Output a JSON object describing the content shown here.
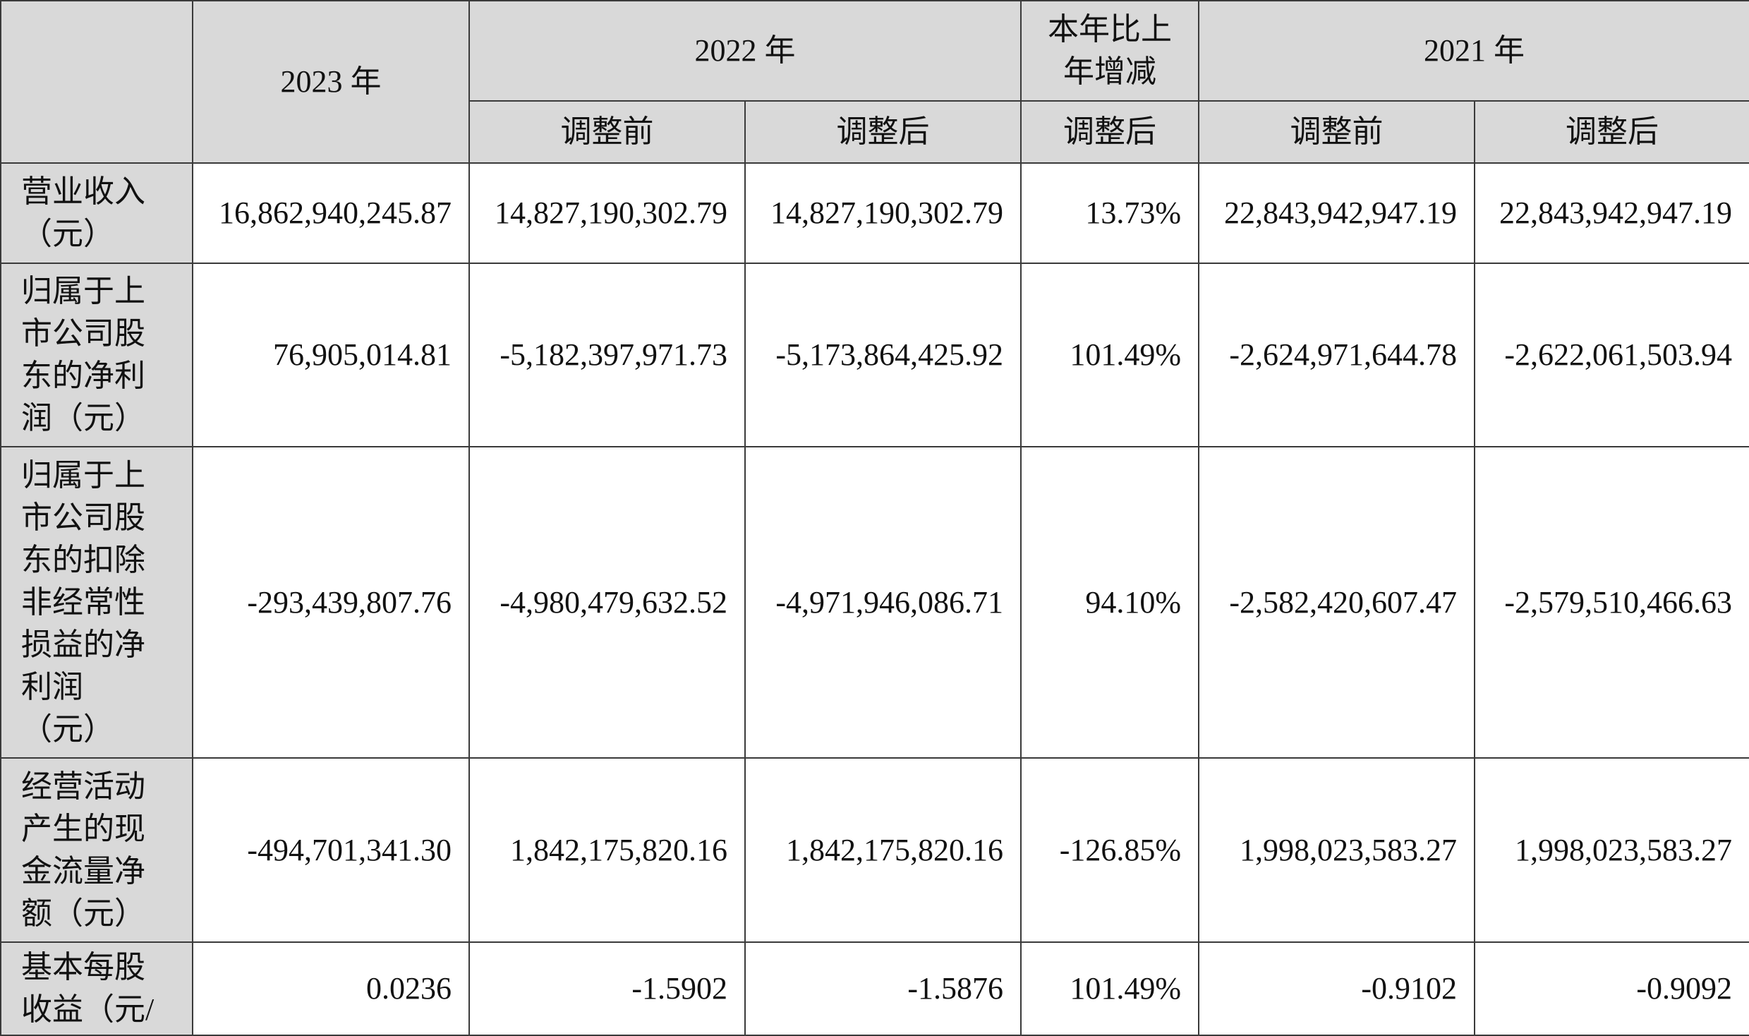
{
  "header": {
    "y2023": "2023 年",
    "y2022": "2022 年",
    "yoy": "本年比上\n年增减",
    "y2021": "2021 年",
    "before_2022": "调整前",
    "after_2022": "调整后",
    "after_yoy": "调整后",
    "before_2021": "调整前",
    "after_2021": "调整后"
  },
  "rows": [
    {
      "label": "营业收入\n（元）",
      "values": [
        "16,862,940,245.87",
        "14,827,190,302.79",
        "14,827,190,302.79",
        "13.73%",
        "22,843,942,947.19",
        "22,843,942,947.19"
      ]
    },
    {
      "label": "归属于上\n市公司股\n东的净利\n润（元）",
      "values": [
        "76,905,014.81",
        "-5,182,397,971.73",
        "-5,173,864,425.92",
        "101.49%",
        "-2,624,971,644.78",
        "-2,622,061,503.94"
      ]
    },
    {
      "label": "归属于上\n市公司股\n东的扣除\n非经常性\n损益的净\n利润\n（元）",
      "values": [
        "-293,439,807.76",
        "-4,980,479,632.52",
        "-4,971,946,086.71",
        "94.10%",
        "-2,582,420,607.47",
        "-2,579,510,466.63"
      ]
    },
    {
      "label": "经营活动\n产生的现\n金流量净\n额（元）",
      "values": [
        "-494,701,341.30",
        "1,842,175,820.16",
        "1,842,175,820.16",
        "-126.85%",
        "1,998,023,583.27",
        "1,998,023,583.27"
      ]
    },
    {
      "label": "基本每股\n收益（元/",
      "values": [
        "0.0236",
        "-1.5902",
        "-1.5876",
        "101.49%",
        "-0.9102",
        "-0.9092"
      ]
    }
  ]
}
